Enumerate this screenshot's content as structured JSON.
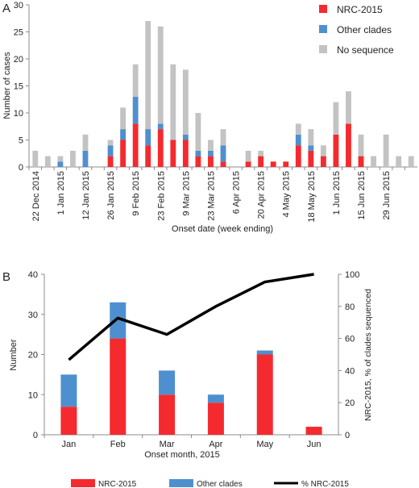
{
  "colors": {
    "nrc": "#F42A2E",
    "other": "#4E90CF",
    "noseq": "#C3C3C3",
    "line": "#000000",
    "axis": "#8c8c8c"
  },
  "chart_data": [
    {
      "panel_label": "A",
      "type": "bar",
      "stacked": true,
      "ylabel": "Number of cases",
      "xlabel": "Onset date (week ending)",
      "ylim": [
        0,
        30
      ],
      "yticks": [
        0,
        5,
        10,
        15,
        20,
        25,
        30
      ],
      "legend_position": "top-right",
      "x_tick_labels": [
        "22 Dec 2014",
        "1 Jan 2015",
        "12 Jan 2015",
        "26 Jan 2015",
        "9 Feb 2015",
        "23 Feb 2015",
        "9 Mar 2015",
        "23 Mar 2015",
        "6 Apr 2015",
        "20 Apr 2015",
        "4 May 2015",
        "18 May 2015",
        "1 Jun 2015",
        "15 Jun 2015",
        "29 Jun 2015"
      ],
      "series": [
        {
          "name": "NRC-2015",
          "color": "#F42A2E",
          "values": [
            0,
            0,
            0,
            0,
            0,
            0,
            2,
            5,
            8,
            4,
            7,
            5,
            5,
            2,
            2,
            1,
            0,
            1,
            2,
            1,
            1,
            4,
            3,
            2,
            6,
            8,
            2,
            0,
            0,
            0,
            0
          ]
        },
        {
          "name": "Other clades",
          "color": "#4E90CF",
          "values": [
            0,
            0,
            1,
            0,
            3,
            0,
            2,
            2,
            5,
            3,
            1,
            0,
            1,
            1,
            1,
            3,
            0,
            0,
            0,
            0,
            0,
            2,
            1,
            0,
            0,
            0,
            0,
            0,
            0,
            0,
            0
          ]
        },
        {
          "name": "No sequence",
          "color": "#C3C3C3",
          "values": [
            3,
            2,
            1,
            3,
            3,
            0,
            1,
            4,
            6,
            20,
            18,
            14,
            12,
            7,
            2,
            3,
            0,
            2,
            1,
            0,
            0,
            2,
            3,
            2,
            6,
            6,
            4,
            2,
            6,
            2,
            2
          ]
        }
      ]
    },
    {
      "panel_label": "B",
      "type": "bar",
      "stacked": true,
      "ylabel": "Number",
      "y2label": "NRC-2015, % of clades sequenced",
      "xlabel": "Onset month, 2015",
      "ylim": [
        0,
        40
      ],
      "yticks": [
        0,
        10,
        20,
        30,
        40
      ],
      "y2lim": [
        0,
        100
      ],
      "y2ticks": [
        0,
        20,
        40,
        60,
        80,
        100
      ],
      "categories": [
        "Jan",
        "Feb",
        "Mar",
        "Apr",
        "May",
        "Jun"
      ],
      "series": [
        {
          "name": "NRC-2015",
          "color": "#F42A2E",
          "values": [
            7,
            24,
            10,
            8,
            20,
            2
          ]
        },
        {
          "name": "Other clades",
          "color": "#4E90CF",
          "values": [
            8,
            9,
            6,
            2,
            1,
            0
          ]
        }
      ],
      "line_series": {
        "name": "% NRC-2015",
        "color": "#000000",
        "values": [
          46.7,
          72.7,
          62.5,
          80,
          95.2,
          100
        ]
      },
      "legend_position": "bottom"
    }
  ]
}
